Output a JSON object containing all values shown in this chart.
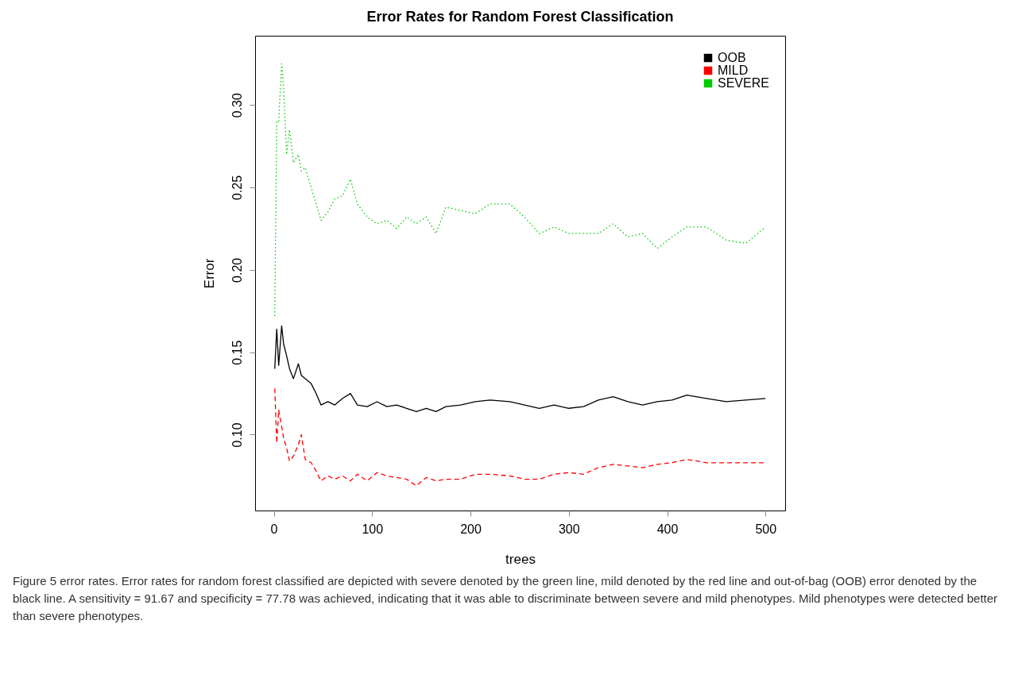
{
  "chart_data": {
    "type": "line",
    "title": "Error Rates for Random Forest Classification",
    "xlabel": "trees",
    "ylabel": "Error",
    "x": [
      1,
      3,
      5,
      8,
      10,
      13,
      16,
      20,
      25,
      28,
      32,
      38,
      43,
      48,
      55,
      62,
      70,
      78,
      85,
      95,
      105,
      115,
      125,
      135,
      145,
      155,
      165,
      175,
      190,
      205,
      220,
      240,
      255,
      270,
      285,
      300,
      315,
      330,
      345,
      360,
      375,
      390,
      405,
      420,
      440,
      460,
      480,
      500
    ],
    "series": [
      {
        "name": "OOB",
        "color": "#000000",
        "line_style": "solid",
        "values": [
          0.14,
          0.164,
          0.142,
          0.166,
          0.155,
          0.148,
          0.14,
          0.134,
          0.143,
          0.136,
          0.134,
          0.131,
          0.125,
          0.118,
          0.12,
          0.118,
          0.122,
          0.125,
          0.118,
          0.117,
          0.12,
          0.117,
          0.118,
          0.116,
          0.114,
          0.116,
          0.114,
          0.117,
          0.118,
          0.12,
          0.121,
          0.12,
          0.118,
          0.116,
          0.118,
          0.116,
          0.117,
          0.121,
          0.123,
          0.12,
          0.118,
          0.12,
          0.121,
          0.124,
          0.122,
          0.12,
          0.121,
          0.122
        ]
      },
      {
        "name": "MILD",
        "color": "#ff0000",
        "line_style": "dashed",
        "values": [
          0.128,
          0.095,
          0.115,
          0.105,
          0.098,
          0.092,
          0.084,
          0.087,
          0.094,
          0.1,
          0.085,
          0.083,
          0.078,
          0.072,
          0.075,
          0.073,
          0.075,
          0.072,
          0.076,
          0.072,
          0.077,
          0.075,
          0.074,
          0.073,
          0.069,
          0.074,
          0.072,
          0.073,
          0.073,
          0.076,
          0.076,
          0.075,
          0.073,
          0.073,
          0.076,
          0.077,
          0.076,
          0.08,
          0.082,
          0.081,
          0.08,
          0.082,
          0.083,
          0.085,
          0.083,
          0.083,
          0.083,
          0.083
        ]
      },
      {
        "name": "SEVERE",
        "color": "#00cc00",
        "line_style": "dotted",
        "values": [
          0.172,
          0.29,
          0.29,
          0.325,
          0.31,
          0.27,
          0.285,
          0.265,
          0.27,
          0.26,
          0.262,
          0.25,
          0.24,
          0.23,
          0.235,
          0.243,
          0.245,
          0.255,
          0.24,
          0.232,
          0.228,
          0.23,
          0.225,
          0.232,
          0.228,
          0.232,
          0.222,
          0.238,
          0.236,
          0.234,
          0.24,
          0.24,
          0.232,
          0.222,
          0.226,
          0.222,
          0.222,
          0.222,
          0.228,
          0.22,
          0.222,
          0.213,
          0.22,
          0.226,
          0.226,
          0.218,
          0.216,
          0.226
        ]
      }
    ],
    "xlim": [
      -19,
      520
    ],
    "xticks": [
      0,
      100,
      200,
      300,
      400,
      500
    ],
    "ylim": [
      0.054,
      0.342
    ],
    "yticks": [
      {
        "value": 0.1,
        "label": "0.10"
      },
      {
        "value": 0.15,
        "label": "0.15"
      },
      {
        "value": 0.2,
        "label": "0.20"
      },
      {
        "value": 0.25,
        "label": "0.25"
      },
      {
        "value": 0.3,
        "label": "0.30"
      }
    ],
    "grid": false,
    "legend": "top right",
    "annotations": [
      "Figure 5 error rates. Error rates for random forest classified are depicted with severe denoted by the green line, mild denoted by the red line and out-of-bag (OOB) error denoted by the black line. A sensitivity = 91.67 and specificity = 77.78 was achieved, indicating that it was able to discriminate between severe and mild phenotypes. Mild phenotypes were detected better than severe phenotypes."
    ]
  }
}
